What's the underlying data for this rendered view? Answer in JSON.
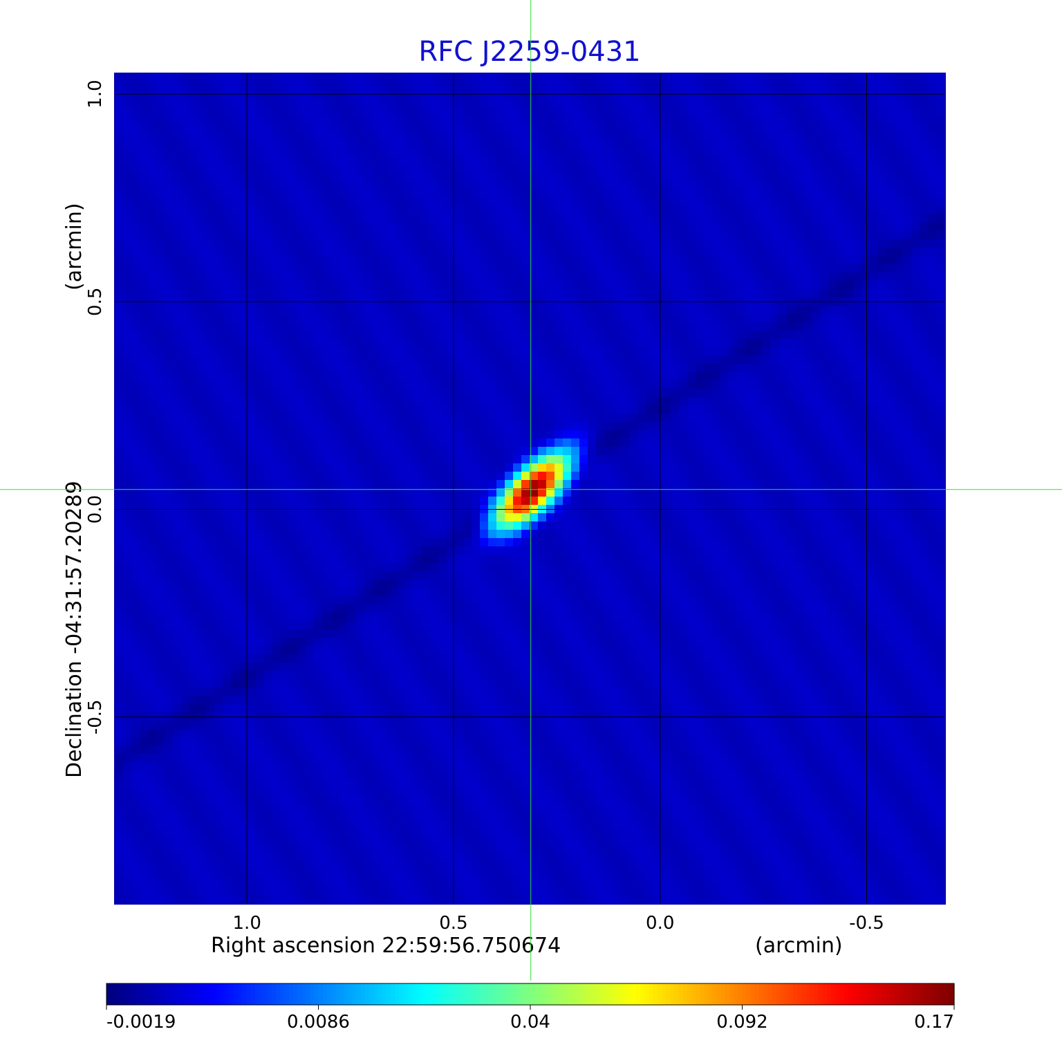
{
  "chart_data": {
    "type": "heatmap",
    "title": "RFC J2259-0431",
    "title_color": "#1010d0",
    "xlabel": "Right ascension  22:59:56.750674",
    "xunit": "(arcmin)",
    "ylabel": "Declination  -04:31:57.20289",
    "yunit": "(arcmin)",
    "xlim": [
      1.32,
      -0.69
    ],
    "ylim": [
      -0.95,
      1.05
    ],
    "x_ticks": [
      {
        "value": 1.0,
        "label": "1.0"
      },
      {
        "value": 0.5,
        "label": "0.5"
      },
      {
        "value": 0.0,
        "label": "0.0"
      },
      {
        "value": -0.5,
        "label": "-0.5"
      }
    ],
    "y_ticks": [
      {
        "value": 1.0,
        "label": "1.0"
      },
      {
        "value": 0.5,
        "label": "0.5"
      },
      {
        "value": 0.0,
        "label": "0.0"
      },
      {
        "value": -0.5,
        "label": "-0.5"
      }
    ],
    "grid": true,
    "grid_color": "#000000",
    "crosshair": {
      "x": 0.313,
      "y": 0.048,
      "color": "#33dd33"
    },
    "colormap": "jet",
    "background_value": 0.0008,
    "source": {
      "x": 0.31,
      "y": 0.045,
      "peak": 0.17,
      "major_sigma": 0.06,
      "minor_sigma": 0.025,
      "angle_deg": 45
    },
    "sidelobe": {
      "slope_deg": 33,
      "depth": -0.0015
    },
    "colorbar": {
      "min": -0.0019,
      "max": 0.17,
      "ticks": [
        {
          "value": -0.0019,
          "label": "-0.0019"
        },
        {
          "value": 0.0086,
          "label": "0.0086"
        },
        {
          "value": 0.04,
          "label": "0.04"
        },
        {
          "value": 0.092,
          "label": "0.092"
        },
        {
          "value": 0.17,
          "label": "0.17"
        }
      ]
    }
  }
}
